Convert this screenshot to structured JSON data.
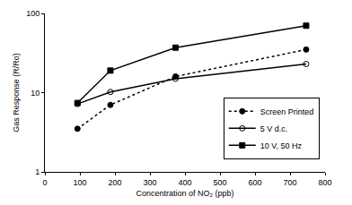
{
  "chart_data": {
    "type": "line",
    "x_label": "Concentration of NO₂ (ppb)",
    "y_label": "Gas Response (R/Ro)",
    "x": [
      93,
      187,
      373,
      746
    ],
    "series": [
      {
        "name": "Screen Printed",
        "color": "#000000",
        "marker": "circle",
        "line_style": "dot",
        "values": [
          3.5,
          7,
          16,
          35
        ]
      },
      {
        "name": "5 V d.c.",
        "color": "#000000",
        "marker": "circle-open",
        "line_style": "solid",
        "values": [
          7.2,
          10.2,
          15,
          23
        ]
      },
      {
        "name": "10 V, 50 Hz",
        "color": "#000000",
        "marker": "square",
        "line_style": "solid",
        "values": [
          7.4,
          19,
          37,
          70
        ]
      }
    ],
    "xlim": [
      0,
      800
    ],
    "xticks": [
      0,
      100,
      200,
      300,
      400,
      500,
      600,
      700,
      800
    ],
    "ylim": [
      1,
      100
    ],
    "yticks": [
      1,
      10,
      100
    ],
    "log": "y",
    "grid": false,
    "legend": "lower right"
  }
}
